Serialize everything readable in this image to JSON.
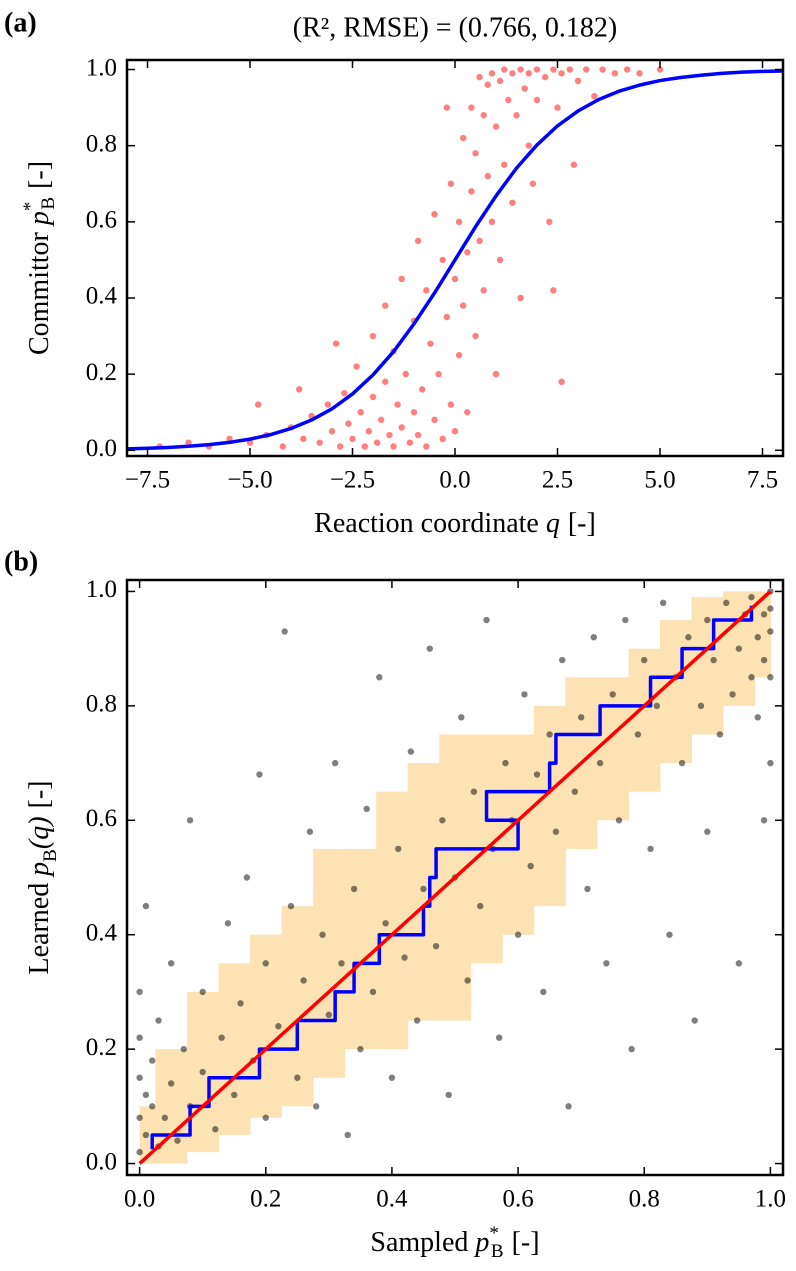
{
  "chart_data": [
    {
      "type": "scatter",
      "panel_label": "(a)",
      "title": "(R², RMSE) = (0.766, 0.182)",
      "xlabel": {
        "text": "Reaction coordinate",
        "var": "q",
        "unit": "[-]"
      },
      "ylabel": {
        "text": "Committor",
        "var": "p",
        "sup": "*",
        "sub": "B",
        "unit": "[-]"
      },
      "xlim": [
        -8,
        8
      ],
      "ylim": [
        -0.015,
        1.025
      ],
      "xticks": [
        {
          "value": -7.5,
          "label": "−7.5"
        },
        {
          "value": -5,
          "label": "−5.0"
        },
        {
          "value": -2.5,
          "label": "−2.5"
        },
        {
          "value": 0,
          "label": "0.0"
        },
        2.5,
        {
          "value": 5,
          "label": "5.0"
        },
        7.5
      ],
      "yticks": [
        {
          "value": 0,
          "label": "0.0"
        },
        0.2,
        0.4,
        0.6,
        0.8,
        {
          "value": 1,
          "label": "1.0"
        }
      ],
      "series": [
        {
          "kind": "scatter",
          "color": "#ff0000",
          "x": [
            -7.2,
            -6.5,
            -6.0,
            -5.5,
            -5.0,
            -4.6,
            -4.2,
            -4.0,
            -3.7,
            -3.5,
            -3.3,
            -3.1,
            -3.0,
            -2.8,
            -2.7,
            -2.6,
            -2.5,
            -2.4,
            -2.3,
            -2.2,
            -2.1,
            -2.0,
            -2.0,
            -1.9,
            -1.8,
            -1.7,
            -1.7,
            -1.6,
            -1.5,
            -1.5,
            -1.4,
            -1.3,
            -1.3,
            -1.2,
            -1.1,
            -1.0,
            -1.0,
            -0.9,
            -0.9,
            -0.8,
            -0.7,
            -0.7,
            -0.6,
            -0.5,
            -0.5,
            -0.4,
            -0.3,
            -0.3,
            -0.2,
            -0.1,
            -0.1,
            0.0,
            0.0,
            0.1,
            0.1,
            0.2,
            0.2,
            0.3,
            0.3,
            0.4,
            0.4,
            0.5,
            0.5,
            0.6,
            0.6,
            0.7,
            0.7,
            0.8,
            0.8,
            0.9,
            0.9,
            1.0,
            1.0,
            1.1,
            1.1,
            1.2,
            1.2,
            1.3,
            1.4,
            1.4,
            1.5,
            1.6,
            1.6,
            1.7,
            1.8,
            1.8,
            1.9,
            2.0,
            2.0,
            2.2,
            2.3,
            2.4,
            2.5,
            2.6,
            2.6,
            2.8,
            3.0,
            3.2,
            3.4,
            3.6,
            3.9,
            4.2,
            4.5,
            5.0,
            2.9,
            -4.8,
            -3.8,
            -2.9,
            -0.2,
            2.4
          ],
          "y": [
            0.01,
            0.02,
            0.01,
            0.03,
            0.02,
            0.04,
            0.01,
            0.06,
            0.03,
            0.09,
            0.02,
            0.12,
            0.05,
            0.01,
            0.15,
            0.07,
            0.03,
            0.22,
            0.1,
            0.01,
            0.05,
            0.3,
            0.14,
            0.02,
            0.08,
            0.38,
            0.18,
            0.04,
            0.26,
            0.01,
            0.12,
            0.45,
            0.06,
            0.2,
            0.02,
            0.34,
            0.1,
            0.55,
            0.04,
            0.16,
            0.42,
            0.01,
            0.28,
            0.62,
            0.08,
            0.2,
            0.5,
            0.03,
            0.35,
            0.7,
            0.12,
            0.45,
            0.05,
            0.6,
            0.25,
            0.82,
            0.38,
            0.52,
            0.1,
            0.9,
            0.68,
            0.3,
            0.78,
            0.98,
            0.55,
            0.88,
            0.42,
            0.96,
            0.72,
            0.99,
            0.6,
            0.85,
            0.2,
            0.97,
            0.5,
            1.0,
            0.75,
            0.92,
            0.99,
            0.65,
            0.88,
            1.0,
            0.4,
            0.95,
            0.99,
            0.8,
            0.7,
            1.0,
            0.92,
            0.98,
            0.6,
            1.0,
            0.9,
            0.18,
            0.99,
            1.0,
            0.97,
            1.0,
            0.93,
            1.0,
            0.99,
            1.0,
            0.99,
            1.0,
            0.75,
            0.12,
            0.16,
            0.28,
            0.9,
            0.42
          ]
        },
        {
          "kind": "line",
          "color": "#0000ff",
          "x": [
            -8,
            -7.5,
            -7,
            -6.5,
            -6,
            -5.5,
            -5,
            -4.5,
            -4,
            -3.5,
            -3,
            -2.5,
            -2,
            -1.5,
            -1,
            -0.5,
            0,
            0.5,
            1,
            1.5,
            2,
            2.5,
            3,
            3.5,
            4,
            4.5,
            5,
            5.5,
            6,
            6.5,
            7,
            7.5,
            8
          ],
          "y": [
            0.0037,
            0.0052,
            0.0074,
            0.0105,
            0.0148,
            0.0208,
            0.0293,
            0.0411,
            0.0573,
            0.0794,
            0.109,
            0.148,
            0.198,
            0.259,
            0.332,
            0.413,
            0.5,
            0.587,
            0.668,
            0.741,
            0.802,
            0.852,
            0.891,
            0.921,
            0.943,
            0.959,
            0.971,
            0.979,
            0.985,
            0.99,
            0.993,
            0.995,
            0.996
          ]
        }
      ]
    },
    {
      "type": "scatter",
      "panel_label": "(b)",
      "xlabel": {
        "text": "Sampled",
        "var": "p",
        "sup": "*",
        "sub": "B",
        "unit": "[-]"
      },
      "ylabel": {
        "text": "Learned",
        "var": "p",
        "sub": "B",
        "arg": "(q)",
        "unit": "[-]"
      },
      "xlim": [
        -0.02,
        1.02
      ],
      "ylim": [
        -0.02,
        1.02
      ],
      "xticks": [
        {
          "value": 0,
          "label": "0.0"
        },
        0.2,
        0.4,
        0.6,
        0.8,
        {
          "value": 1,
          "label": "1.0"
        }
      ],
      "yticks": [
        {
          "value": 0,
          "label": "0.0"
        },
        0.2,
        0.4,
        0.6,
        0.8,
        {
          "value": 1,
          "label": "1.0"
        }
      ],
      "series": [
        {
          "kind": "band",
          "color": "#fde2b4",
          "x": [
            0,
            0.05,
            0.1,
            0.15,
            0.2,
            0.25,
            0.3,
            0.35,
            0.4,
            0.45,
            0.5,
            0.55,
            0.6,
            0.65,
            0.7,
            0.75,
            0.8,
            0.85,
            0.9,
            0.95,
            1.0
          ],
          "lower": [
            0,
            0,
            0.02,
            0.05,
            0.08,
            0.1,
            0.15,
            0.2,
            0.2,
            0.25,
            0.25,
            0.35,
            0.4,
            0.45,
            0.55,
            0.6,
            0.65,
            0.7,
            0.75,
            0.8,
            0.85
          ],
          "upper": [
            0.1,
            0.2,
            0.3,
            0.35,
            0.4,
            0.45,
            0.55,
            0.55,
            0.65,
            0.7,
            0.75,
            0.75,
            0.75,
            0.8,
            0.85,
            0.85,
            0.9,
            0.95,
            0.99,
            1.0,
            1.0
          ]
        },
        {
          "kind": "scatter",
          "color": "#000000",
          "x": [
            0.0,
            0.0,
            0.0,
            0.0,
            0.0,
            0.01,
            0.01,
            0.01,
            0.02,
            0.02,
            0.03,
            0.03,
            0.04,
            0.05,
            0.05,
            0.06,
            0.07,
            0.08,
            0.08,
            0.1,
            0.1,
            0.12,
            0.13,
            0.14,
            0.15,
            0.16,
            0.17,
            0.18,
            0.19,
            0.2,
            0.2,
            0.22,
            0.23,
            0.24,
            0.25,
            0.26,
            0.27,
            0.28,
            0.29,
            0.3,
            0.31,
            0.32,
            0.33,
            0.34,
            0.35,
            0.36,
            0.37,
            0.38,
            0.39,
            0.4,
            0.41,
            0.42,
            0.43,
            0.44,
            0.45,
            0.46,
            0.47,
            0.48,
            0.49,
            0.5,
            0.51,
            0.52,
            0.53,
            0.54,
            0.55,
            0.56,
            0.57,
            0.58,
            0.59,
            0.6,
            0.61,
            0.62,
            0.63,
            0.64,
            0.65,
            0.66,
            0.67,
            0.68,
            0.69,
            0.7,
            0.71,
            0.72,
            0.73,
            0.74,
            0.75,
            0.76,
            0.77,
            0.78,
            0.79,
            0.8,
            0.81,
            0.82,
            0.83,
            0.84,
            0.85,
            0.86,
            0.87,
            0.88,
            0.89,
            0.9,
            0.9,
            0.91,
            0.92,
            0.93,
            0.94,
            0.95,
            0.95,
            0.96,
            0.97,
            0.97,
            0.98,
            0.98,
            0.99,
            0.99,
            1.0,
            1.0,
            1.0,
            1.0,
            1.0,
            0.99
          ],
          "y": [
            0.02,
            0.08,
            0.15,
            0.22,
            0.3,
            0.05,
            0.12,
            0.45,
            0.1,
            0.18,
            0.03,
            0.25,
            0.08,
            0.14,
            0.35,
            0.04,
            0.2,
            0.1,
            0.6,
            0.16,
            0.3,
            0.06,
            0.22,
            0.42,
            0.12,
            0.28,
            0.5,
            0.18,
            0.68,
            0.08,
            0.35,
            0.24,
            0.93,
            0.45,
            0.15,
            0.32,
            0.58,
            0.1,
            0.4,
            0.26,
            0.7,
            0.35,
            0.05,
            0.48,
            0.2,
            0.62,
            0.3,
            0.85,
            0.42,
            0.15,
            0.55,
            0.36,
            0.72,
            0.25,
            0.48,
            0.9,
            0.38,
            0.6,
            0.12,
            0.5,
            0.78,
            0.32,
            0.65,
            0.45,
            0.95,
            0.55,
            0.22,
            0.7,
            0.6,
            0.4,
            0.82,
            0.52,
            0.68,
            0.3,
            0.75,
            0.58,
            0.88,
            0.1,
            0.65,
            0.78,
            0.48,
            0.92,
            0.7,
            0.35,
            0.82,
            0.6,
            0.95,
            0.2,
            0.75,
            0.88,
            0.55,
            0.8,
            0.98,
            0.4,
            0.85,
            0.7,
            0.92,
            0.25,
            0.8,
            0.95,
            0.58,
            0.88,
            0.75,
            0.98,
            0.82,
            0.9,
            0.35,
            0.96,
            0.85,
            0.99,
            0.92,
            0.78,
            0.96,
            0.88,
            0.93,
            0.97,
            1.0,
            0.85,
            0.7,
            0.6
          ]
        },
        {
          "kind": "line",
          "color": "#0000ff",
          "x": [
            0.02,
            0.02,
            0.08,
            0.08,
            0.11,
            0.11,
            0.19,
            0.19,
            0.25,
            0.25,
            0.31,
            0.31,
            0.34,
            0.34,
            0.38,
            0.38,
            0.45,
            0.45,
            0.46,
            0.46,
            0.47,
            0.47,
            0.6,
            0.6,
            0.55,
            0.55,
            0.65,
            0.65,
            0.66,
            0.66,
            0.73,
            0.73,
            0.81,
            0.81,
            0.86,
            0.86,
            0.91,
            0.91,
            0.97,
            0.97
          ],
          "y": [
            0.025,
            0.05,
            0.05,
            0.1,
            0.1,
            0.15,
            0.15,
            0.2,
            0.2,
            0.25,
            0.25,
            0.3,
            0.3,
            0.35,
            0.35,
            0.4,
            0.4,
            0.45,
            0.45,
            0.5,
            0.5,
            0.55,
            0.55,
            0.6,
            0.6,
            0.65,
            0.65,
            0.7,
            0.7,
            0.75,
            0.75,
            0.8,
            0.8,
            0.85,
            0.85,
            0.9,
            0.9,
            0.95,
            0.95,
            0.975
          ]
        },
        {
          "kind": "line",
          "color": "#ff0000",
          "x": [
            0,
            1
          ],
          "y": [
            0,
            1
          ]
        }
      ]
    }
  ]
}
